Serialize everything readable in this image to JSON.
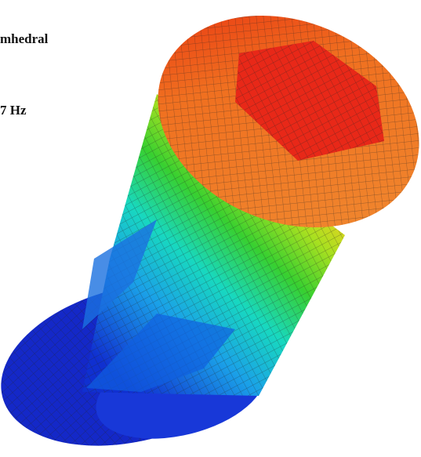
{
  "labels": {
    "mode_name": "mhedral",
    "frequency": "7 Hz"
  }
}
